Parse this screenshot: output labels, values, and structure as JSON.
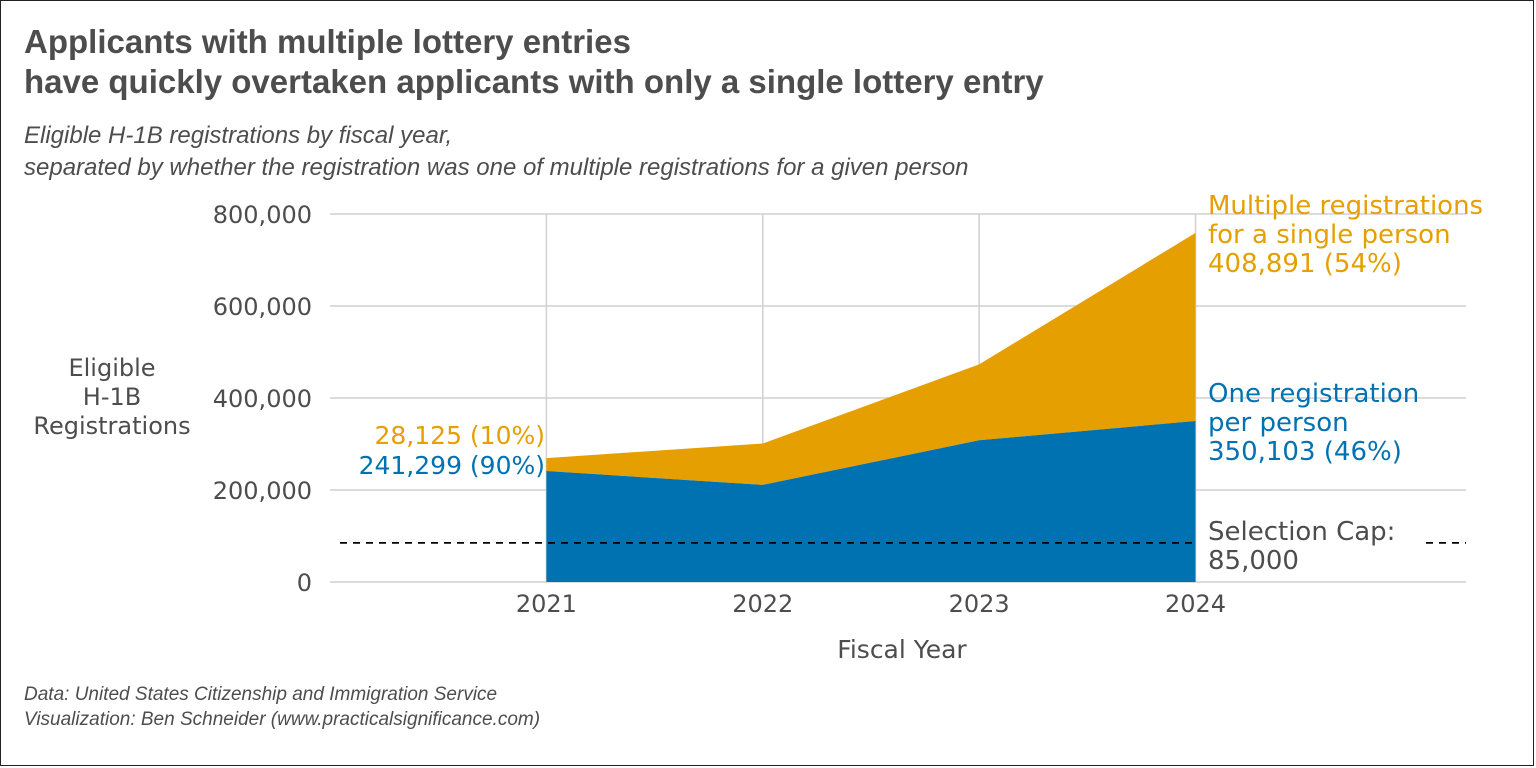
{
  "title_lines": [
    "Applicants with multiple lottery entries",
    "have quickly overtaken applicants with only a single lottery entry"
  ],
  "subtitle_lines": [
    "Eligible H-1B registrations by fiscal year,",
    "separated by whether the registration was one of multiple registrations for a given person"
  ],
  "caption_lines": [
    "Data: United States Citizenship and Immigration Service",
    "Visualization: Ben Schneider (www.practicalsignificance.com)"
  ],
  "chart_data": {
    "type": "area",
    "stacked": true,
    "x": [
      2021,
      2022,
      2023,
      2024
    ],
    "xlabel": "Fiscal Year",
    "ylabel_lines": [
      "Eligible",
      "H-1B",
      "Registrations"
    ],
    "ylim": [
      0,
      800000
    ],
    "yticks": [
      0,
      200000,
      400000,
      600000,
      800000
    ],
    "ytick_labels": [
      "0",
      "200,000",
      "400,000",
      "600,000",
      "800,000"
    ],
    "xtick_labels": [
      "2021",
      "2022",
      "2023",
      "2024"
    ],
    "grid": true,
    "series": [
      {
        "key": "single",
        "values": [
          241299,
          211000,
          308000,
          350103
        ],
        "color": "#0072b2",
        "start_label": "241,299 (90%)",
        "end_label_lines": [
          "One registration",
          "per person",
          "350,103 (46%)"
        ]
      },
      {
        "key": "multiple",
        "values": [
          28125,
          90000,
          165000,
          408891
        ],
        "color": "#e69f00",
        "start_label": "28,125 (10%)",
        "end_label_lines": [
          "Multiple registrations",
          "for a single person",
          "408,891 (54%)"
        ]
      }
    ],
    "reference_line": {
      "value": 85000,
      "label_lines": [
        "Selection Cap:",
        "85,000"
      ],
      "style": "dashed",
      "color": "#000000"
    }
  }
}
